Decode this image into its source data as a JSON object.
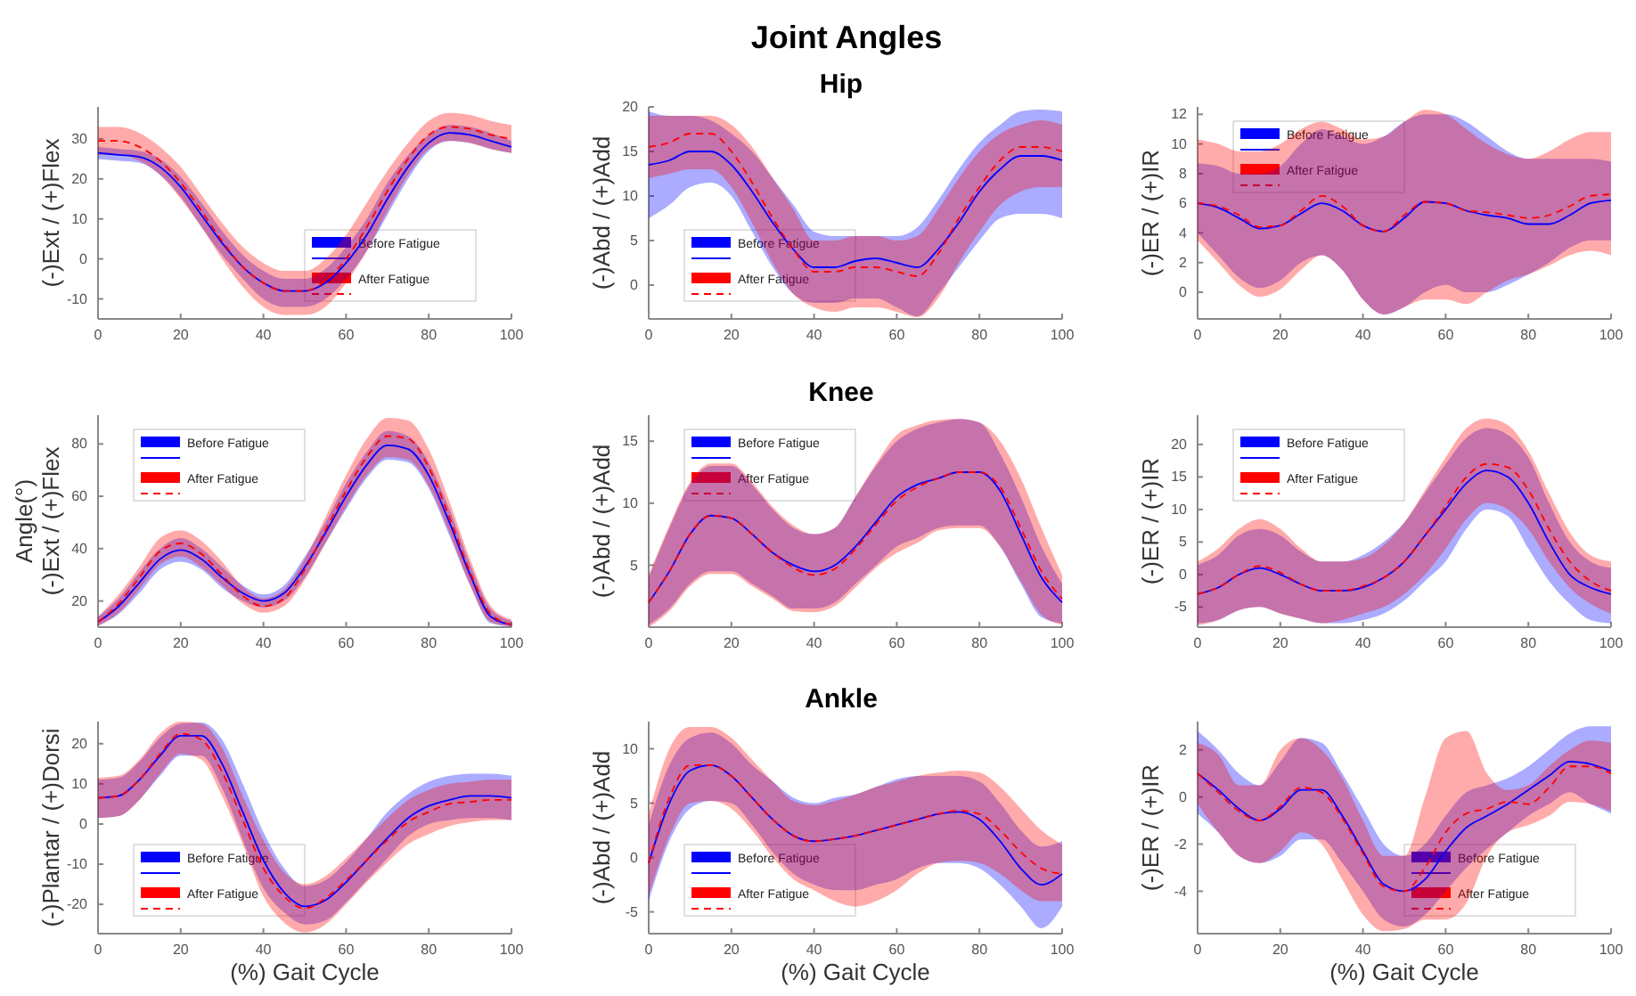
{
  "chart_data": [
    {
      "type": "line",
      "ylabel": "(-)Ext / (+)Flex",
      "x": [
        0,
        5,
        10,
        15,
        20,
        25,
        30,
        35,
        40,
        45,
        50,
        55,
        60,
        65,
        70,
        75,
        80,
        85,
        90,
        95,
        100
      ],
      "xlim": [
        0,
        100
      ],
      "xticks": [
        0,
        20,
        40,
        60,
        80,
        100
      ],
      "ylim": [
        -15,
        38
      ],
      "yticks": [
        -10,
        0,
        10,
        20,
        30
      ],
      "legend": "bottom right",
      "series": [
        {
          "name": "Before Fatigue",
          "color": "#0000ff",
          "values": [
            26.5,
            26,
            25.5,
            23,
            18,
            11,
            4,
            -2,
            -6,
            -8,
            -8,
            -6,
            -1,
            6,
            15,
            23,
            29,
            31.5,
            31,
            29.5,
            28
          ],
          "lower": [
            25,
            24.5,
            24,
            21,
            15.5,
            8,
            1,
            -5,
            -10,
            -12,
            -12,
            -10,
            -5,
            2,
            11,
            20,
            27,
            29.5,
            29,
            27.5,
            26.5
          ],
          "upper": [
            28,
            27.5,
            27,
            25,
            20.5,
            14,
            7,
            1,
            -3,
            -5,
            -5,
            -2.5,
            3,
            10,
            19,
            26,
            31,
            33.5,
            33,
            31.5,
            29.5
          ]
        },
        {
          "name": "After Fatigue",
          "color": "#ff0000",
          "line_style": "dashed",
          "values": [
            29.5,
            29.5,
            28,
            24.5,
            19,
            12,
            4.5,
            -2,
            -6,
            -8,
            -8,
            -5.5,
            0,
            8,
            17,
            25,
            31,
            33,
            32.5,
            31,
            30
          ],
          "lower": [
            26,
            26,
            24.5,
            21,
            15,
            8,
            0,
            -7,
            -12,
            -14,
            -14,
            -12,
            -6,
            2,
            12,
            21,
            27.5,
            29.5,
            29,
            27.5,
            26.5
          ],
          "upper": [
            33,
            33,
            31.5,
            28,
            23,
            16,
            9,
            3,
            -1,
            -3,
            -3,
            0,
            6,
            14,
            22,
            29,
            34.5,
            36.5,
            36,
            34.5,
            33.5
          ]
        }
      ]
    },
    {
      "type": "line",
      "title": "Joint Angles",
      "subtitle": "Hip",
      "ylabel": "(-)Abd / (+)Add",
      "x": [
        0,
        5,
        10,
        15,
        20,
        25,
        30,
        35,
        40,
        45,
        50,
        55,
        60,
        65,
        70,
        75,
        80,
        85,
        90,
        95,
        100
      ],
      "xlim": [
        0,
        100
      ],
      "xticks": [
        0,
        20,
        40,
        60,
        80,
        100
      ],
      "ylim": [
        -3.8,
        20
      ],
      "yticks": [
        0,
        5,
        10,
        15,
        20
      ],
      "legend": "bottom left",
      "series": [
        {
          "name": "Before Fatigue",
          "color": "#0000ff",
          "values": [
            13.5,
            14,
            15,
            15,
            13.5,
            10.5,
            7,
            4,
            2,
            2,
            2.7,
            3,
            2.5,
            2,
            4,
            7,
            10.5,
            13,
            14.5,
            14.5,
            14
          ],
          "lower": [
            7.5,
            9,
            11,
            11.5,
            10,
            6,
            2,
            -1,
            -2,
            -2,
            -1.5,
            -1.5,
            -2.5,
            -3.5,
            -1,
            2,
            5,
            7.5,
            8,
            8,
            7.5
          ],
          "upper": [
            19.5,
            19,
            19,
            18.5,
            17,
            15,
            12,
            9,
            6,
            5.5,
            5.5,
            5.5,
            5.5,
            6.5,
            9.5,
            13,
            16,
            18,
            19.5,
            19.7,
            19.5
          ]
        },
        {
          "name": "After Fatigue",
          "color": "#ff0000",
          "line_style": "dashed",
          "values": [
            15.5,
            16,
            17,
            17,
            15,
            11.5,
            7.5,
            4,
            1.5,
            1.5,
            2,
            2,
            1.5,
            1,
            3.5,
            7.5,
            11,
            14,
            15.5,
            15.5,
            15
          ],
          "lower": [
            12,
            12.5,
            13,
            13,
            11,
            7,
            2.5,
            -1,
            -2.5,
            -3,
            -2.5,
            -2.5,
            -3,
            -3.6,
            -1.5,
            2.5,
            6,
            9,
            10.5,
            11,
            11
          ],
          "upper": [
            19,
            19,
            19,
            19,
            18,
            15.5,
            12,
            8.5,
            5,
            5,
            5.5,
            5.5,
            5,
            5.5,
            8.5,
            12,
            15,
            17,
            18,
            18.5,
            18
          ]
        }
      ]
    },
    {
      "type": "line",
      "ylabel": "(-)ER / (+)IR",
      "x": [
        0,
        5,
        10,
        15,
        20,
        25,
        30,
        35,
        40,
        45,
        50,
        55,
        60,
        65,
        70,
        75,
        80,
        85,
        90,
        95,
        100
      ],
      "xlim": [
        0,
        100
      ],
      "xticks": [
        0,
        20,
        40,
        60,
        80,
        100
      ],
      "ylim": [
        -1.8,
        12.5
      ],
      "yticks": [
        0,
        2,
        4,
        6,
        8,
        10,
        12
      ],
      "legend": "top left",
      "series": [
        {
          "name": "Before Fatigue",
          "color": "#0000ff",
          "values": [
            6,
            5.7,
            5,
            4.3,
            4.5,
            5.3,
            6,
            5.5,
            4.5,
            4.1,
            5,
            6.1,
            6,
            5.5,
            5.2,
            5,
            4.6,
            4.6,
            5.2,
            6,
            6.2
          ],
          "lower": [
            4,
            2.5,
            1,
            0.3,
            0.8,
            2,
            2.5,
            1.5,
            -0.5,
            -1.5,
            -1,
            0,
            0.5,
            0,
            0,
            0.5,
            1.2,
            2,
            3,
            3.5,
            3.5
          ],
          "upper": [
            8.7,
            8.5,
            8,
            8,
            8.5,
            10,
            11,
            10.5,
            10,
            10.5,
            11.5,
            12,
            12,
            11.5,
            10.5,
            9.5,
            9,
            9,
            9,
            9,
            8.8
          ]
        },
        {
          "name": "After Fatigue",
          "color": "#ff0000",
          "line_style": "dashed",
          "values": [
            6,
            5.8,
            5.2,
            4.4,
            4.5,
            5.5,
            6.5,
            5.8,
            4.5,
            4.1,
            5.2,
            6.1,
            6,
            5.5,
            5.4,
            5.2,
            5,
            5.2,
            5.8,
            6.5,
            6.6
          ],
          "lower": [
            3.5,
            2,
            0.5,
            -0.3,
            0.2,
            1.5,
            2.5,
            1.5,
            -0.5,
            -1.5,
            -1,
            -0.5,
            -0.5,
            -0.8,
            0,
            0.8,
            1.2,
            1.8,
            2.5,
            2.8,
            2.5
          ],
          "upper": [
            10.3,
            10,
            9.5,
            9.5,
            10,
            11,
            11.5,
            11,
            10.3,
            10.5,
            11.5,
            12.3,
            12,
            11,
            10,
            9.3,
            9,
            9.5,
            10.3,
            10.8,
            10.8
          ]
        }
      ]
    },
    {
      "type": "line",
      "ylabel": "Angle(°)\n(-)Ext / (+)Flex",
      "x": [
        0,
        5,
        10,
        15,
        20,
        25,
        30,
        35,
        40,
        45,
        50,
        55,
        60,
        65,
        70,
        75,
        80,
        85,
        90,
        95,
        100
      ],
      "xlim": [
        0,
        100
      ],
      "xticks": [
        0,
        20,
        40,
        60,
        80,
        100
      ],
      "ylim": [
        10,
        91
      ],
      "yticks": [
        20,
        40,
        60,
        80
      ],
      "legend": "top left",
      "series": [
        {
          "name": "Before Fatigue",
          "color": "#0000ff",
          "values": [
            12,
            18,
            27,
            36,
            39.5,
            36,
            29,
            23,
            20,
            23,
            33,
            46,
            60,
            72,
            79.5,
            78,
            68,
            50,
            30,
            14,
            11
          ],
          "lower": [
            10.5,
            15,
            23,
            32,
            35,
            32,
            25,
            20,
            17.5,
            20,
            29,
            42,
            55,
            67,
            74,
            73,
            63,
            45,
            26,
            11.5,
            10.2
          ],
          "upper": [
            14,
            21,
            31,
            40,
            44,
            40,
            33,
            26,
            22.5,
            26,
            37,
            50,
            65,
            77,
            85,
            83,
            73,
            55,
            34,
            17,
            12.5
          ]
        },
        {
          "name": "After Fatigue",
          "color": "#ff0000",
          "line_style": "dashed",
          "values": [
            12,
            19,
            29,
            39,
            42,
            38,
            30,
            22,
            18,
            21,
            32,
            47,
            62,
            75,
            83,
            82,
            71,
            52,
            31,
            15,
            11
          ],
          "lower": [
            10.5,
            15.5,
            24.5,
            34,
            37,
            33,
            26,
            19,
            15.5,
            18,
            28,
            42,
            56,
            68,
            75,
            74,
            64,
            46,
            26,
            12,
            10.2
          ],
          "upper": [
            14,
            22.5,
            33,
            44,
            47,
            43,
            35,
            25.5,
            21,
            24.5,
            36,
            52,
            68,
            82,
            90,
            89,
            78,
            58,
            36,
            18,
            13
          ]
        }
      ]
    },
    {
      "type": "line",
      "subtitle": "Knee",
      "ylabel": "(-)Abd / (+)Add",
      "x": [
        0,
        5,
        10,
        15,
        20,
        25,
        30,
        35,
        40,
        45,
        50,
        55,
        60,
        65,
        70,
        75,
        80,
        85,
        90,
        95,
        100
      ],
      "xlim": [
        0,
        100
      ],
      "xticks": [
        0,
        20,
        40,
        60,
        80,
        100
      ],
      "ylim": [
        0,
        17.1
      ],
      "yticks": [
        5,
        10,
        15
      ],
      "legend": "top left",
      "series": [
        {
          "name": "Before Fatigue",
          "color": "#0000ff",
          "values": [
            2,
            4.5,
            7.5,
            9,
            8.8,
            7.5,
            6,
            5,
            4.5,
            5,
            6.5,
            8.5,
            10.5,
            11.5,
            12,
            12.5,
            12.5,
            11,
            7.5,
            4,
            2
          ],
          "lower": [
            0.2,
            1.5,
            3.5,
            4.5,
            4.5,
            3.5,
            2.5,
            1.5,
            1.5,
            2,
            3.5,
            5,
            6.5,
            7.2,
            8,
            8.2,
            8.2,
            6.5,
            3.5,
            0.8,
            0.3
          ],
          "upper": [
            4,
            8,
            11.5,
            13,
            13,
            11.5,
            9.5,
            8,
            7.5,
            8,
            10.5,
            13,
            15,
            16,
            16.5,
            16.8,
            16.5,
            14,
            10.5,
            6.5,
            3.5
          ]
        },
        {
          "name": "After Fatigue",
          "color": "#ff0000",
          "line_style": "dashed",
          "values": [
            2,
            4.5,
            7.5,
            9,
            8.8,
            7.5,
            6,
            4.8,
            4.2,
            4.7,
            6.3,
            8.3,
            10.2,
            11.3,
            12,
            12.5,
            12.5,
            11.3,
            8,
            4.5,
            2.3
          ],
          "lower": [
            0,
            1.3,
            3.3,
            4.3,
            4.3,
            3.3,
            2.3,
            1.3,
            1.2,
            1.7,
            3.2,
            4.8,
            6,
            6.8,
            7.8,
            8,
            8,
            6.5,
            3.7,
            1,
            0.2
          ],
          "upper": [
            4.2,
            8.2,
            11.7,
            13.2,
            13.2,
            11.7,
            9.7,
            8.2,
            7.5,
            8,
            10.5,
            13.2,
            15.5,
            16.3,
            16.7,
            16.8,
            16.5,
            15,
            12,
            8,
            4.2
          ]
        }
      ]
    },
    {
      "type": "line",
      "ylabel": "(-)ER / (+)IR",
      "x": [
        0,
        5,
        10,
        15,
        20,
        25,
        30,
        35,
        40,
        45,
        50,
        55,
        60,
        65,
        70,
        75,
        80,
        85,
        90,
        95,
        100
      ],
      "xlim": [
        0,
        100
      ],
      "xticks": [
        0,
        20,
        40,
        60,
        80,
        100
      ],
      "ylim": [
        -8.1,
        24.5
      ],
      "yticks": [
        -5,
        0,
        5,
        10,
        15,
        20
      ],
      "legend": "top left",
      "series": [
        {
          "name": "Before Fatigue",
          "color": "#0000ff",
          "values": [
            -3,
            -2,
            0,
            1,
            0,
            -1.5,
            -2.5,
            -2.5,
            -2,
            -0.5,
            2,
            6,
            10,
            14,
            16,
            15,
            11,
            5,
            0,
            -2,
            -3
          ],
          "lower": [
            -7.5,
            -7,
            -5.5,
            -5,
            -6,
            -6.8,
            -7.5,
            -7.5,
            -7,
            -6,
            -4,
            -1,
            2,
            7,
            10,
            9,
            4,
            -1,
            -4.5,
            -7,
            -7.5
          ],
          "upper": [
            1.5,
            3,
            6,
            7,
            6,
            3.5,
            2,
            2,
            3,
            5,
            8,
            12.5,
            17,
            21,
            22.5,
            21.5,
            18,
            11,
            5,
            2,
            1
          ]
        },
        {
          "name": "After Fatigue",
          "color": "#ff0000",
          "line_style": "dashed",
          "values": [
            -3,
            -2,
            0,
            1.3,
            0.3,
            -1.5,
            -2.5,
            -2.5,
            -1.8,
            -0.5,
            2,
            6,
            10.5,
            15,
            17,
            16.5,
            13,
            7,
            2,
            -1,
            -2.5
          ],
          "lower": [
            -7.8,
            -7,
            -5.5,
            -5,
            -6,
            -6.8,
            -7.5,
            -7,
            -6,
            -5,
            -3,
            0,
            4,
            8.5,
            11,
            10,
            7,
            2,
            -2,
            -4.5,
            -6
          ],
          "upper": [
            2,
            4,
            7,
            8.5,
            7,
            4,
            2,
            2,
            2.5,
            4.5,
            8,
            13,
            18,
            22.5,
            24,
            23,
            19,
            12.5,
            6.5,
            3,
            2
          ]
        }
      ]
    },
    {
      "type": "line",
      "ylabel": "(-)Plantar / (+)Dorsi",
      "xlabel": "(%) Gait Cycle",
      "x": [
        0,
        5,
        10,
        15,
        20,
        25,
        30,
        35,
        40,
        45,
        50,
        55,
        60,
        65,
        70,
        75,
        80,
        85,
        90,
        95,
        100
      ],
      "xlim": [
        0,
        100
      ],
      "xticks": [
        0,
        20,
        40,
        60,
        80,
        100
      ],
      "ylim": [
        -27.3,
        25.5
      ],
      "yticks": [
        -20,
        -10,
        0,
        10,
        20
      ],
      "legend": "bottom left",
      "series": [
        {
          "name": "Before Fatigue",
          "color": "#0000ff",
          "values": [
            6.5,
            7,
            11,
            17,
            22,
            22,
            15,
            3,
            -9,
            -17,
            -20.5,
            -19,
            -14.5,
            -9,
            -3.5,
            1.5,
            4.5,
            6,
            7,
            7,
            6.5
          ],
          "lower": [
            1.5,
            2,
            6,
            12,
            17,
            17,
            9,
            -4,
            -16,
            -22,
            -25,
            -24,
            -19.5,
            -14,
            -8.5,
            -3,
            0,
            1,
            1.5,
            1.5,
            1
          ],
          "upper": [
            11,
            11.5,
            15.5,
            21.5,
            25,
            25.3,
            21,
            10,
            -2,
            -11,
            -15.5,
            -14,
            -9.5,
            -3.5,
            3,
            7.5,
            10.5,
            12,
            12.5,
            12.5,
            12
          ]
        },
        {
          "name": "After Fatigue",
          "color": "#ff0000",
          "line_style": "dashed",
          "values": [
            6.5,
            7,
            11,
            17.5,
            22.5,
            21,
            13,
            1,
            -11,
            -18,
            -21,
            -18.5,
            -14,
            -9,
            -4,
            0.5,
            3,
            5,
            5.5,
            6,
            6
          ],
          "lower": [
            1.5,
            2,
            6,
            12.5,
            17.5,
            16,
            7,
            -5,
            -18,
            -24.5,
            -27,
            -25,
            -20,
            -14.5,
            -9.5,
            -5,
            -2.5,
            -0.5,
            0.5,
            1,
            1
          ],
          "upper": [
            11.5,
            12,
            16,
            22.5,
            25.5,
            25,
            19,
            7,
            -4,
            -12,
            -15,
            -13,
            -8.5,
            -3.5,
            1.5,
            6,
            8.5,
            10,
            10.5,
            11,
            11
          ]
        }
      ]
    },
    {
      "type": "line",
      "subtitle": "Ankle",
      "ylabel": "(-)Abd / (+)Add",
      "xlabel": "(%) Gait Cycle",
      "x": [
        0,
        5,
        10,
        15,
        20,
        25,
        30,
        35,
        40,
        45,
        50,
        55,
        60,
        65,
        70,
        75,
        80,
        85,
        90,
        95,
        100
      ],
      "xlim": [
        0,
        100
      ],
      "xticks": [
        0,
        20,
        40,
        60,
        80,
        100
      ],
      "ylim": [
        -7,
        12.5
      ],
      "yticks": [
        -5,
        0,
        5,
        10
      ],
      "legend": "bottom left",
      "series": [
        {
          "name": "Before Fatigue",
          "color": "#0000ff",
          "values": [
            -0.5,
            5,
            8,
            8.5,
            7.5,
            5.5,
            3.5,
            2,
            1.5,
            1.7,
            2,
            2.5,
            3,
            3.5,
            4,
            4.2,
            3.5,
            1.5,
            -1,
            -2.5,
            -1.5
          ],
          "lower": [
            -4,
            1.5,
            4.5,
            5.2,
            5,
            3,
            0.5,
            -1.5,
            -2.5,
            -3,
            -3,
            -2.5,
            -2,
            -1,
            -0.5,
            -0.5,
            -1,
            -2.5,
            -4.5,
            -6.5,
            -4.5
          ],
          "upper": [
            3,
            8.5,
            11,
            11.5,
            10.5,
            8.5,
            7,
            5.5,
            5,
            5.5,
            5.8,
            6.5,
            7.2,
            7.5,
            7.5,
            7.5,
            7,
            5,
            2.5,
            1,
            1.5
          ]
        },
        {
          "name": "After Fatigue",
          "color": "#ff0000",
          "line_style": "dashed",
          "values": [
            -0.5,
            5.5,
            8.5,
            8.5,
            7.5,
            5.5,
            3.5,
            2,
            1.5,
            1.7,
            2,
            2.5,
            3,
            3.5,
            4,
            4.3,
            4,
            2.5,
            0.5,
            -1,
            -1.5
          ],
          "lower": [
            -3.5,
            2,
            5,
            5.2,
            4.5,
            2.5,
            0,
            -2,
            -3,
            -4,
            -4.5,
            -4,
            -3,
            -1.5,
            -0.5,
            -0.3,
            -0.5,
            -1.5,
            -3,
            -4,
            -4
          ],
          "upper": [
            4,
            10,
            12,
            12,
            11,
            9,
            7,
            5.2,
            4.8,
            5.2,
            5.8,
            6.5,
            7,
            7.5,
            7.8,
            8,
            7.8,
            6.5,
            4.5,
            2.5,
            1.2
          ]
        }
      ]
    },
    {
      "type": "line",
      "ylabel": "(-)ER / (+)IR",
      "xlabel": "(%) Gait Cycle",
      "x": [
        0,
        5,
        10,
        15,
        20,
        25,
        30,
        35,
        40,
        45,
        50,
        55,
        60,
        65,
        70,
        75,
        80,
        85,
        90,
        95,
        100
      ],
      "xlim": [
        0,
        100
      ],
      "xticks": [
        0,
        20,
        40,
        60,
        80,
        100
      ],
      "ylim": [
        -5.8,
        3.2
      ],
      "yticks": [
        -4,
        -2,
        0,
        2
      ],
      "legend": "bottom right",
      "series": [
        {
          "name": "Before Fatigue",
          "color": "#0000ff",
          "values": [
            1,
            0.3,
            -0.5,
            -1,
            -0.5,
            0.3,
            0.3,
            -0.8,
            -2.3,
            -3.7,
            -4,
            -3.5,
            -2.3,
            -1.3,
            -0.8,
            -0.3,
            0.3,
            0.9,
            1.5,
            1.4,
            1.1
          ],
          "lower": [
            -0.7,
            -1.5,
            -2.5,
            -2.8,
            -2.5,
            -1.8,
            -1.8,
            -2.8,
            -4,
            -5.2,
            -5.5,
            -5,
            -4,
            -3,
            -2.2,
            -1.5,
            -0.8,
            -0.3,
            0.2,
            -0.3,
            -0.7
          ],
          "upper": [
            2.8,
            2,
            1,
            0.5,
            1.5,
            2.5,
            2.3,
            1,
            -0.5,
            -2,
            -2.5,
            -2,
            -0.8,
            0.2,
            0.5,
            0.8,
            1.3,
            2,
            2.7,
            3,
            3
          ]
        },
        {
          "name": "After Fatigue",
          "color": "#ff0000",
          "line_style": "dashed",
          "values": [
            1,
            0.2,
            -0.6,
            -1,
            -0.4,
            0.4,
            0.2,
            -0.9,
            -2.4,
            -3.8,
            -4,
            -3,
            -1.5,
            -0.7,
            -0.5,
            -0.2,
            -0.3,
            0.4,
            1.3,
            1.3,
            1
          ],
          "lower": [
            -0.3,
            -1.5,
            -2.5,
            -2.8,
            -2.3,
            -1.5,
            -2,
            -3.5,
            -5,
            -5.7,
            -5.6,
            -5.2,
            -5.2,
            -4.5,
            -2.5,
            -1.5,
            -1.2,
            -0.8,
            -0.2,
            -0.3,
            -0.6
          ],
          "upper": [
            2.3,
            1.8,
            0.5,
            0.5,
            2,
            2.5,
            2,
            0.8,
            -1,
            -2.5,
            -2.5,
            0,
            2.5,
            2.8,
            1,
            0.3,
            0.5,
            1.3,
            2,
            2.4,
            2.3
          ]
        }
      ]
    }
  ]
}
